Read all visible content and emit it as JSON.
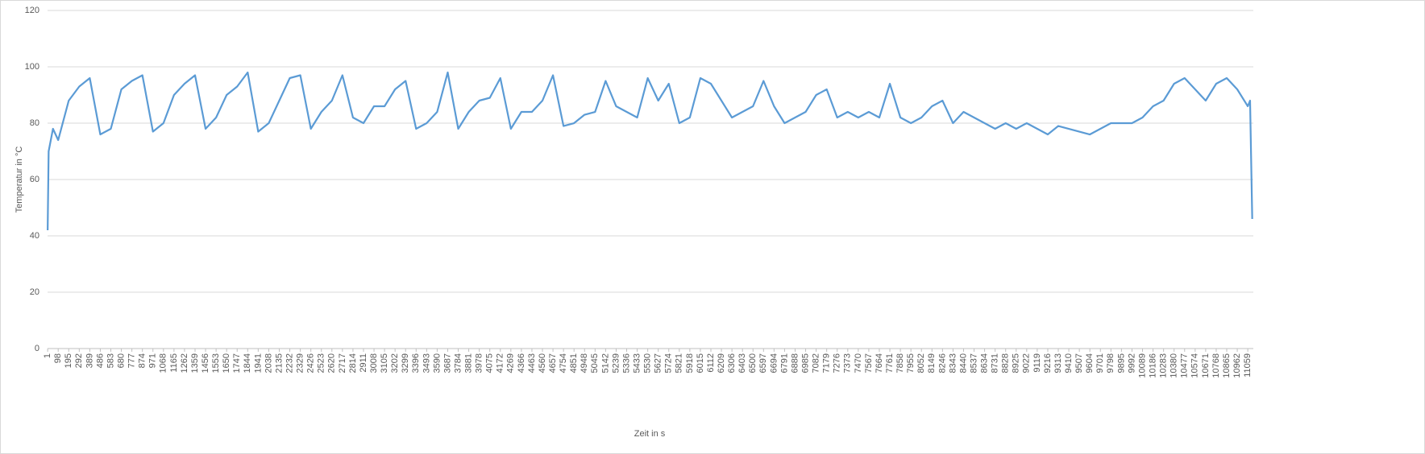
{
  "chart_data": {
    "type": "line",
    "x_label": "Zeit in s",
    "y_label": "Temperatur in °C",
    "color": "#5b9bd5",
    "grid": true,
    "x": [
      1,
      10,
      50,
      98,
      195,
      292,
      389,
      486,
      583,
      680,
      777,
      874,
      971,
      1068,
      1165,
      1262,
      1359,
      1456,
      1553,
      1650,
      1747,
      1844,
      1941,
      2038,
      2135,
      2232,
      2329,
      2426,
      2523,
      2620,
      2717,
      2814,
      2911,
      3008,
      3105,
      3202,
      3299,
      3396,
      3493,
      3590,
      3687,
      3784,
      3881,
      3978,
      4075,
      4172,
      4269,
      4366,
      4463,
      4560,
      4657,
      4754,
      4851,
      4948,
      5045,
      5142,
      5239,
      5336,
      5433,
      5530,
      5627,
      5724,
      5821,
      5918,
      6015,
      6112,
      6209,
      6306,
      6403,
      6500,
      6597,
      6694,
      6791,
      6888,
      6985,
      7082,
      7179,
      7276,
      7373,
      7470,
      7567,
      7664,
      7761,
      7858,
      7955,
      8052,
      8149,
      8246,
      8343,
      8440,
      8537,
      8634,
      8731,
      8828,
      8925,
      9022,
      9119,
      9216,
      9313,
      9410,
      9507,
      9604,
      9701,
      9798,
      9895,
      9992,
      10089,
      10186,
      10283,
      10380,
      10477,
      10574,
      10671,
      10768,
      10865,
      10962,
      11059,
      11080,
      11100
    ],
    "values": [
      42,
      70,
      78,
      74,
      88,
      93,
      96,
      76,
      78,
      92,
      95,
      97,
      77,
      80,
      90,
      94,
      97,
      78,
      82,
      90,
      93,
      98,
      77,
      80,
      88,
      96,
      97,
      78,
      84,
      88,
      97,
      82,
      80,
      86,
      86,
      92,
      95,
      78,
      80,
      84,
      98,
      78,
      84,
      88,
      89,
      96,
      78,
      84,
      84,
      88,
      97,
      79,
      80,
      83,
      84,
      95,
      86,
      84,
      82,
      96,
      88,
      94,
      80,
      82,
      96,
      94,
      88,
      82,
      84,
      86,
      95,
      86,
      80,
      82,
      84,
      90,
      92,
      82,
      84,
      82,
      84,
      82,
      94,
      82,
      80,
      82,
      86,
      88,
      80,
      84,
      82,
      80,
      78,
      80,
      78,
      80,
      78,
      76,
      79,
      78,
      77,
      76,
      78,
      80,
      80,
      80,
      82,
      86,
      88,
      94,
      96,
      92,
      88,
      94,
      96,
      92,
      86,
      88,
      46
    ],
    "xlim": [
      0,
      11110
    ],
    "xticks": [
      1,
      98,
      195,
      292,
      389,
      486,
      583,
      680,
      777,
      874,
      971,
      1068,
      1165,
      1262,
      1359,
      1456,
      1553,
      1650,
      1747,
      1844,
      1941,
      2038,
      2135,
      2232,
      2329,
      2426,
      2523,
      2620,
      2717,
      2814,
      2911,
      3008,
      3105,
      3202,
      3299,
      3396,
      3493,
      3590,
      3687,
      3784,
      3881,
      3978,
      4075,
      4172,
      4269,
      4366,
      4463,
      4560,
      4657,
      4754,
      4851,
      4948,
      5045,
      5142,
      5239,
      5336,
      5433,
      5530,
      5627,
      5724,
      5821,
      5918,
      6015,
      6112,
      6209,
      6306,
      6403,
      6500,
      6597,
      6694,
      6791,
      6888,
      6985,
      7082,
      7179,
      7276,
      7373,
      7470,
      7567,
      7664,
      7761,
      7858,
      7955,
      8052,
      8149,
      8246,
      8343,
      8440,
      8537,
      8634,
      8731,
      8828,
      8925,
      9022,
      9119,
      9216,
      9313,
      9410,
      9507,
      9604,
      9701,
      9798,
      9895,
      9992,
      10089,
      10186,
      10283,
      10380,
      10477,
      10574,
      10671,
      10768,
      10865,
      10962,
      11059
    ],
    "ylim": [
      0,
      120
    ],
    "yticks": [
      0,
      20,
      40,
      60,
      80,
      100,
      120
    ]
  }
}
